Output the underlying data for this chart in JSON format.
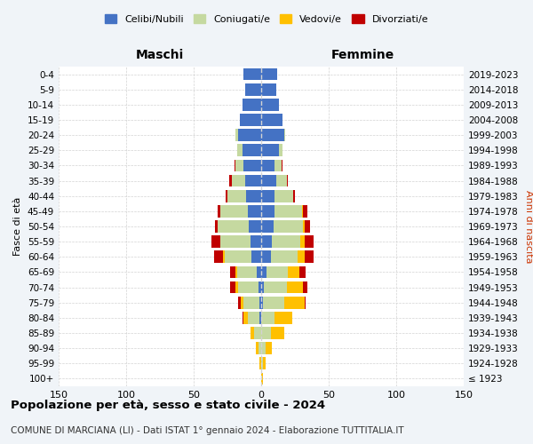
{
  "age_groups": [
    "100+",
    "95-99",
    "90-94",
    "85-89",
    "80-84",
    "75-79",
    "70-74",
    "65-69",
    "60-64",
    "55-59",
    "50-54",
    "45-49",
    "40-44",
    "35-39",
    "30-34",
    "25-29",
    "20-24",
    "15-19",
    "10-14",
    "5-9",
    "0-4"
  ],
  "birth_years": [
    "≤ 1923",
    "1924-1928",
    "1929-1933",
    "1934-1938",
    "1939-1943",
    "1944-1948",
    "1949-1953",
    "1954-1958",
    "1959-1963",
    "1964-1968",
    "1969-1973",
    "1974-1978",
    "1979-1983",
    "1984-1988",
    "1989-1993",
    "1994-1998",
    "1999-2003",
    "2004-2008",
    "2009-2013",
    "2014-2018",
    "2019-2023"
  ],
  "colors": {
    "celibi": "#4472c4",
    "coniugati": "#c5d9a0",
    "vedovi": "#ffc000",
    "divorziati": "#c00000"
  },
  "maschi": {
    "celibi": [
      0,
      0,
      0,
      0,
      1,
      1,
      2,
      3,
      7,
      8,
      9,
      10,
      11,
      12,
      13,
      14,
      17,
      16,
      14,
      12,
      13
    ],
    "coniugati": [
      0,
      0,
      2,
      5,
      9,
      12,
      15,
      15,
      20,
      22,
      23,
      20,
      14,
      10,
      6,
      4,
      2,
      0,
      0,
      0,
      0
    ],
    "vedovi": [
      0,
      1,
      2,
      3,
      3,
      2,
      2,
      1,
      1,
      0,
      0,
      0,
      0,
      0,
      0,
      0,
      0,
      0,
      0,
      0,
      0
    ],
    "divorziati": [
      0,
      0,
      0,
      0,
      1,
      2,
      4,
      4,
      7,
      7,
      2,
      2,
      1,
      2,
      1,
      0,
      0,
      0,
      0,
      0,
      0
    ]
  },
  "femmine": {
    "nubili": [
      0,
      0,
      0,
      0,
      0,
      1,
      2,
      4,
      7,
      8,
      9,
      10,
      10,
      11,
      10,
      13,
      17,
      16,
      13,
      11,
      12
    ],
    "coniugate": [
      0,
      1,
      3,
      7,
      10,
      16,
      17,
      16,
      20,
      21,
      22,
      20,
      14,
      8,
      5,
      3,
      1,
      0,
      0,
      0,
      0
    ],
    "vedove": [
      1,
      2,
      5,
      10,
      13,
      15,
      12,
      8,
      5,
      3,
      1,
      1,
      0,
      0,
      0,
      0,
      0,
      0,
      0,
      0,
      0
    ],
    "divorziate": [
      0,
      0,
      0,
      0,
      0,
      1,
      3,
      5,
      7,
      7,
      4,
      3,
      1,
      1,
      1,
      0,
      0,
      0,
      0,
      0,
      0
    ]
  },
  "title": "Popolazione per età, sesso e stato civile - 2024",
  "subtitle": "COMUNE DI MARCIANA (LI) - Dati ISTAT 1° gennaio 2024 - Elaborazione TUTTITALIA.IT",
  "xlabel_left": "Maschi",
  "xlabel_right": "Femmine",
  "ylabel_left": "Fasce di età",
  "ylabel_right": "Anni di nascita",
  "xlim": 150,
  "bg_color": "#f0f4f8",
  "plot_bg": "#ffffff"
}
